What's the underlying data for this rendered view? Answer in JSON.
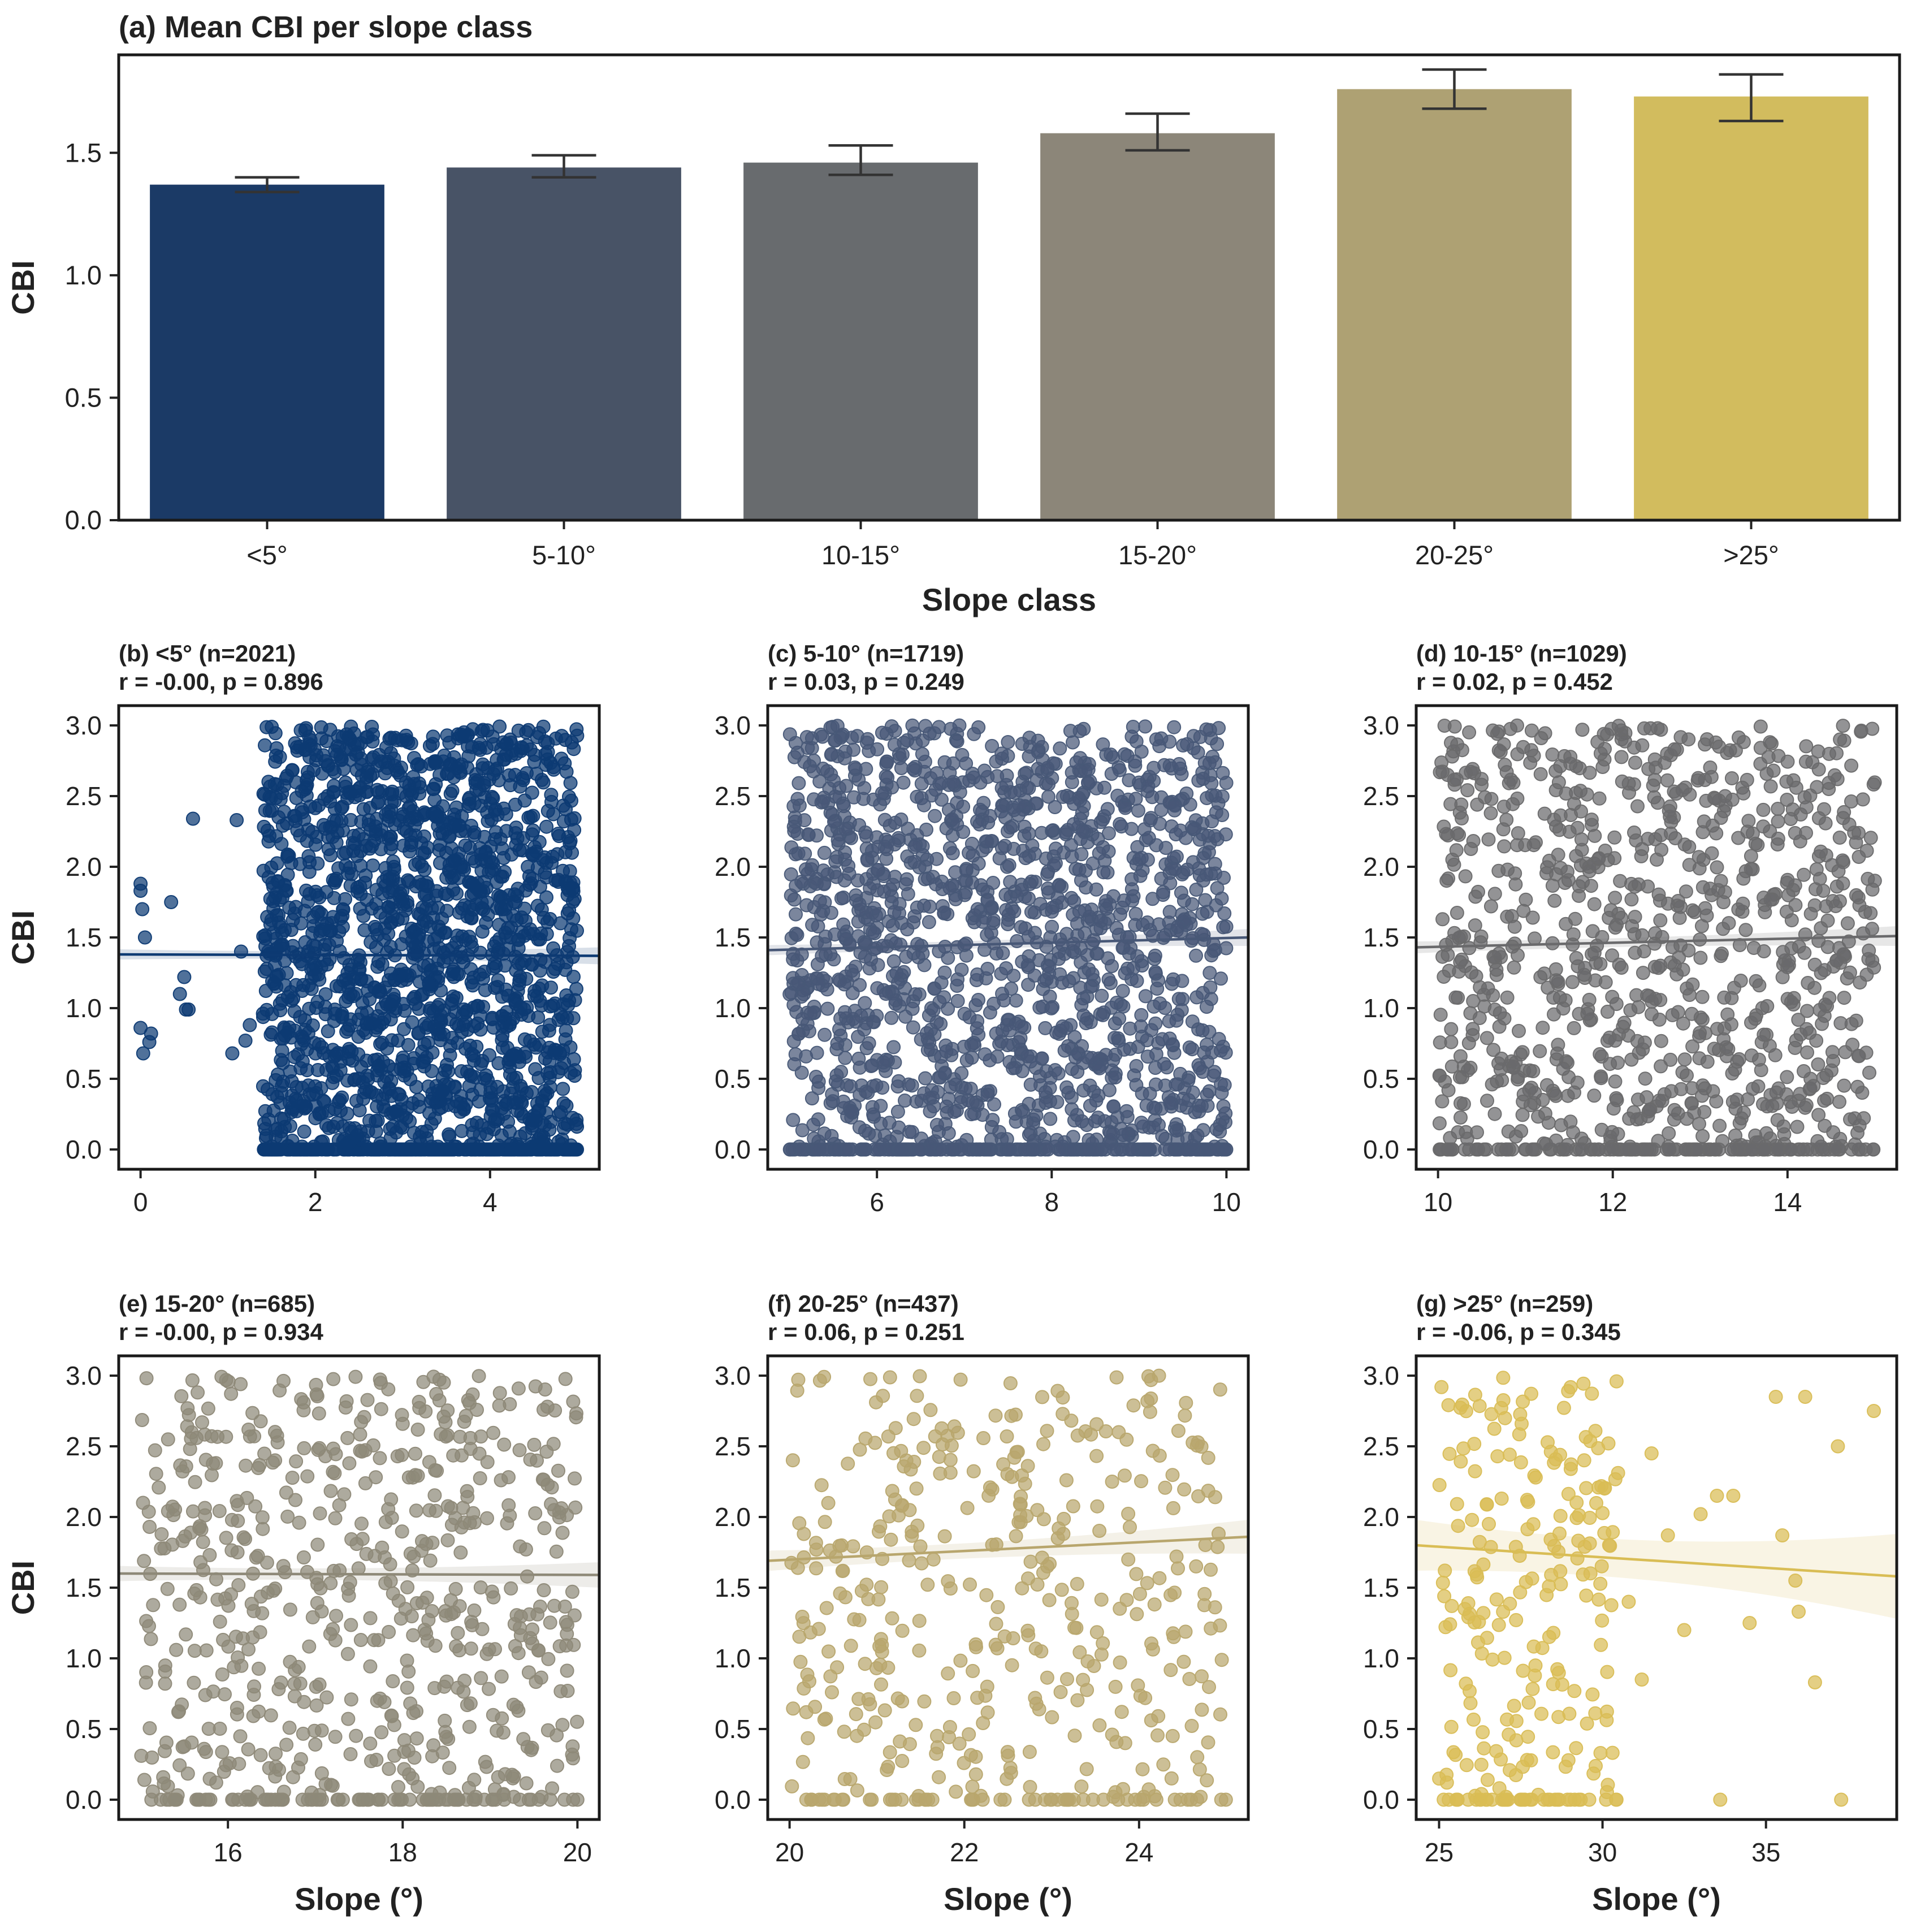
{
  "chart_data": [
    {
      "type": "bar",
      "title": "(a) Mean CBI per slope class",
      "xlabel": "Slope class",
      "ylabel": "CBI",
      "ylim": [
        0,
        1.9
      ],
      "yticks": [
        0.0,
        0.5,
        1.0,
        1.5
      ],
      "categories": [
        "<5°",
        "5-10°",
        "10-15°",
        "15-20°",
        "20-25°",
        ">25°"
      ],
      "values": [
        1.37,
        1.44,
        1.46,
        1.58,
        1.76,
        1.73
      ],
      "error_low": [
        1.34,
        1.4,
        1.41,
        1.51,
        1.68,
        1.63
      ],
      "error_high": [
        1.4,
        1.49,
        1.53,
        1.66,
        1.84,
        1.82
      ],
      "colors": [
        "#1b3a66",
        "#485366",
        "#686b6e",
        "#8c8679",
        "#aea173",
        "#d2bc5e"
      ]
    },
    {
      "type": "scatter",
      "title": "(b) <5° (n=2021)",
      "stats": "r = -0.00,  p = 0.896",
      "n": 2021,
      "xlim": [
        -0.25,
        5.25
      ],
      "ylim": [
        -0.14,
        3.14
      ],
      "xticks": [
        0,
        2,
        4
      ],
      "yticks": [
        0.0,
        0.5,
        1.0,
        1.5,
        2.0,
        2.5,
        3.0
      ],
      "xlabel": "",
      "ylabel": "CBI",
      "fit": {
        "x": [
          -0.25,
          5.25
        ],
        "y": [
          1.38,
          1.37
        ],
        "ci": 0.06
      },
      "color": "#0d3a73",
      "x_range": [
        1.4,
        5.0
      ],
      "sparse_points": [
        [
          0.0,
          1.88
        ],
        [
          0.0,
          1.83
        ],
        [
          0.02,
          1.7
        ],
        [
          0.05,
          1.5
        ],
        [
          0.0,
          0.86
        ],
        [
          0.03,
          0.68
        ],
        [
          0.1,
          0.76
        ],
        [
          0.12,
          0.82
        ],
        [
          0.35,
          1.75
        ],
        [
          0.45,
          1.1
        ],
        [
          0.5,
          1.22
        ],
        [
          0.52,
          0.99
        ],
        [
          0.55,
          0.99
        ],
        [
          0.6,
          2.34
        ],
        [
          1.05,
          0.68
        ],
        [
          1.1,
          2.33
        ],
        [
          1.15,
          1.4
        ],
        [
          1.2,
          0.77
        ],
        [
          1.25,
          0.88
        ]
      ]
    },
    {
      "type": "scatter",
      "title": "(c) 5-10° (n=1719)",
      "stats": "r = 0.03,  p = 0.249",
      "n": 1719,
      "xlim": [
        4.75,
        10.25
      ],
      "ylim": [
        -0.14,
        3.14
      ],
      "xticks": [
        6,
        8,
        10
      ],
      "yticks": [
        0.0,
        0.5,
        1.0,
        1.5,
        2.0,
        2.5,
        3.0
      ],
      "xlabel": "",
      "ylabel": "",
      "fit": {
        "x": [
          4.75,
          10.25
        ],
        "y": [
          1.41,
          1.5
        ],
        "ci": 0.06
      },
      "color": "#485877",
      "x_range": [
        5.0,
        10.0
      ]
    },
    {
      "type": "scatter",
      "title": "(d) 10-15° (n=1029)",
      "stats": "r = 0.02,  p = 0.452",
      "n": 1029,
      "xlim": [
        9.75,
        15.25
      ],
      "ylim": [
        -0.14,
        3.14
      ],
      "xticks": [
        10,
        12,
        14
      ],
      "yticks": [
        0.0,
        0.5,
        1.0,
        1.5,
        2.0,
        2.5,
        3.0
      ],
      "xlabel": "",
      "ylabel": "",
      "fit": {
        "x": [
          9.75,
          15.25
        ],
        "y": [
          1.43,
          1.51
        ],
        "ci": 0.07
      },
      "color": "#6a6a6c",
      "x_range": [
        10.0,
        15.0
      ]
    },
    {
      "type": "scatter",
      "title": "(e) 15-20° (n=685)",
      "stats": "r = -0.00,  p = 0.934",
      "n": 685,
      "xlim": [
        14.75,
        20.25
      ],
      "ylim": [
        -0.14,
        3.14
      ],
      "xticks": [
        16,
        18,
        20
      ],
      "yticks": [
        0.0,
        0.5,
        1.0,
        1.5,
        2.0,
        2.5,
        3.0
      ],
      "xlabel": "Slope (°)",
      "ylabel": "CBI",
      "fit": {
        "x": [
          14.75,
          20.25
        ],
        "y": [
          1.6,
          1.59
        ],
        "ci": 0.09
      },
      "color": "#8e8978",
      "x_range": [
        15.0,
        20.0
      ]
    },
    {
      "type": "scatter",
      "title": "(f) 20-25° (n=437)",
      "stats": "r = 0.06,  p = 0.251",
      "n": 437,
      "xlim": [
        19.75,
        25.25
      ],
      "ylim": [
        -0.14,
        3.14
      ],
      "xticks": [
        20,
        22,
        24
      ],
      "yticks": [
        0.0,
        0.5,
        1.0,
        1.5,
        2.0,
        2.5,
        3.0
      ],
      "xlabel": "Slope (°)",
      "ylabel": "",
      "fit": {
        "x": [
          19.75,
          25.25
        ],
        "y": [
          1.69,
          1.86
        ],
        "ci": 0.12
      },
      "color": "#b8a66d",
      "x_range": [
        20.0,
        25.0
      ]
    },
    {
      "type": "scatter",
      "title": "(g) >25° (n=259)",
      "stats": "r = -0.06,  p = 0.345",
      "n": 259,
      "xlim": [
        24.3,
        39.0
      ],
      "ylim": [
        -0.14,
        3.14
      ],
      "xticks": [
        25,
        30,
        35
      ],
      "yticks": [
        0.0,
        0.5,
        1.0,
        1.5,
        2.0,
        2.5,
        3.0
      ],
      "xlabel": "Slope (°)",
      "ylabel": "",
      "fit": {
        "x": [
          24.3,
          39.0
        ],
        "y": [
          1.8,
          1.58
        ],
        "ci": 0.3
      },
      "color": "#d9bd55",
      "x_range": [
        25.0,
        30.5
      ],
      "sparse_points": [
        [
          33.5,
          2.15
        ],
        [
          34.0,
          2.15
        ],
        [
          35.3,
          2.85
        ],
        [
          36.2,
          2.85
        ],
        [
          37.2,
          2.5
        ],
        [
          38.3,
          2.75
        ],
        [
          35.5,
          1.87
        ],
        [
          35.9,
          1.55
        ],
        [
          36.0,
          1.33
        ],
        [
          36.5,
          0.83
        ],
        [
          37.3,
          0.0
        ],
        [
          31.5,
          2.45
        ],
        [
          32.0,
          1.87
        ],
        [
          33.0,
          2.02
        ],
        [
          32.5,
          1.2
        ],
        [
          34.5,
          1.25
        ],
        [
          33.6,
          0.0
        ],
        [
          30.8,
          1.4
        ],
        [
          31.2,
          0.85
        ]
      ]
    }
  ]
}
